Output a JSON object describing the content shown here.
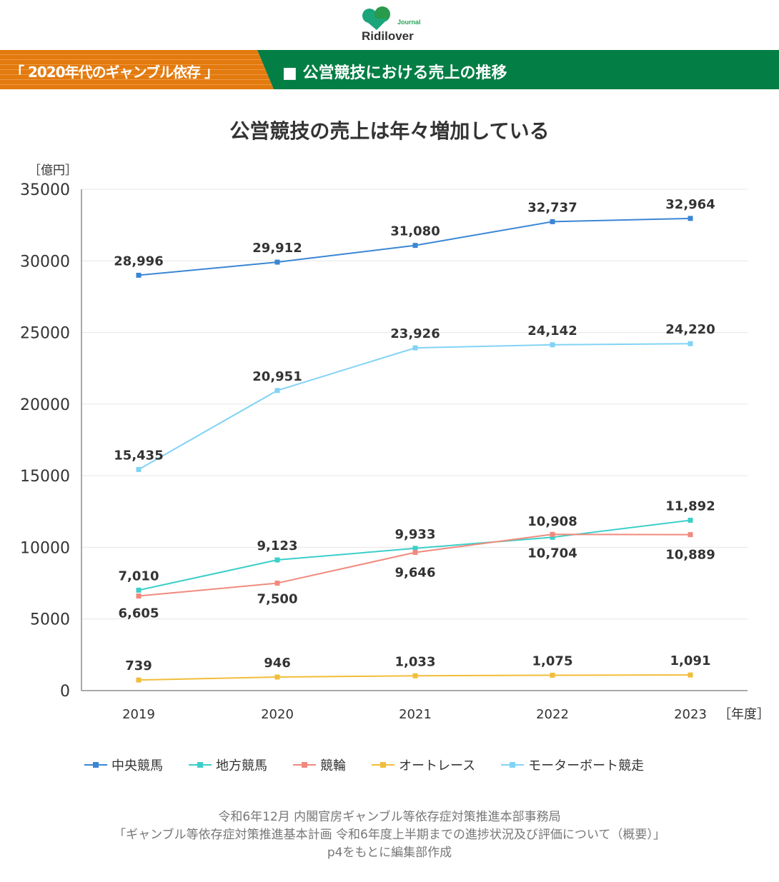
{
  "header": {
    "logo": "Ridilover Journal",
    "series_label": "「 2020年代のギャンブル依存 」",
    "section_title": "■ 公営競技における売上の推移"
  },
  "chart_data": {
    "type": "line",
    "title": "公営競技の売上は年々増加している",
    "ylabel": "［億円］",
    "xlabel": "［年度］",
    "x": [
      "2019",
      "2020",
      "2021",
      "2022",
      "2023"
    ],
    "ylim": [
      0,
      35000
    ],
    "yticks": [
      0,
      5000,
      10000,
      15000,
      20000,
      25000,
      30000,
      35000
    ],
    "grid": true,
    "legend_position": "bottom",
    "series": [
      {
        "name": "中央競馬",
        "color": "#3a86d4",
        "values": [
          28996,
          29912,
          31080,
          32737,
          32964
        ],
        "labels": [
          "28,996",
          "29,912",
          "31,080",
          "32,737",
          "32,964"
        ]
      },
      {
        "name": "地方競馬",
        "color": "#3ccfc9",
        "values": [
          7010,
          9123,
          9933,
          10704,
          11892
        ],
        "labels": [
          "7,010",
          "9,123",
          "9,933",
          "10,704",
          "11,892"
        ]
      },
      {
        "name": "競輪",
        "color": "#f08a7e",
        "values": [
          6605,
          7500,
          9646,
          10908,
          10889
        ],
        "labels": [
          "6,605",
          "7,500",
          "9,646",
          "10,908",
          "10,889"
        ]
      },
      {
        "name": "オートレース",
        "color": "#f2bd3a",
        "values": [
          739,
          946,
          1033,
          1075,
          1091
        ],
        "labels": [
          "739",
          "946",
          "1,033",
          "1,075",
          "1,091"
        ]
      },
      {
        "name": "モーターボート競走",
        "color": "#82d3f5",
        "values": [
          15435,
          20951,
          23926,
          24142,
          24220
        ],
        "labels": [
          "15,435",
          "20,951",
          "23,926",
          "24,142",
          "24,220"
        ]
      }
    ]
  },
  "source": [
    "令和6年12月 内閣官房ギャンブル等依存症対策推進本部事務局",
    "「ギャンブル等依存症対策推進基本計画 令和6年度上半期までの進捗状況及び評価について（概要）」",
    "p4をもとに編集部作成"
  ]
}
